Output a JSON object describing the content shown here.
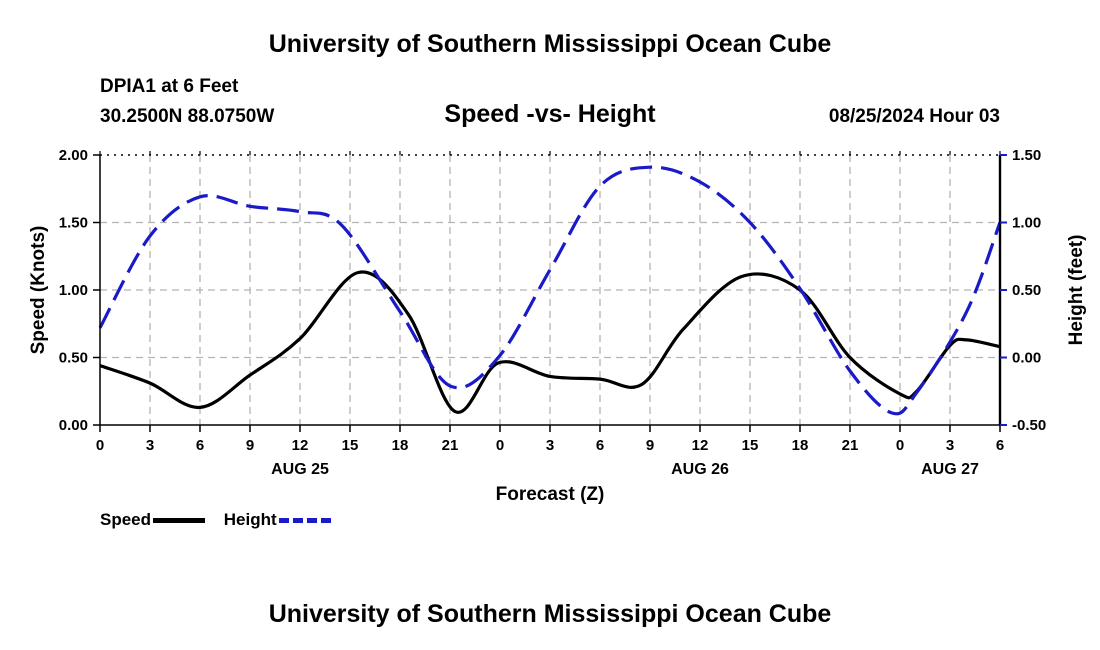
{
  "header": {
    "title": "University of Southern Mississippi Ocean Cube",
    "station": "DPIA1 at 6 Feet",
    "coords": "30.2500N  88.0750W",
    "subtitle": "Speed -vs- Height",
    "datetime": "08/25/2024 Hour 03"
  },
  "footer": {
    "title": "University of Southern Mississippi Ocean Cube"
  },
  "legend": {
    "speed_label": "Speed",
    "height_label": "Height"
  },
  "colors": {
    "speed": "#000000",
    "height": "#1a1ac8",
    "grid": "#b4b4b4"
  },
  "chart_data": {
    "type": "line",
    "title": "Speed -vs- Height",
    "xlabel": "Forecast (Z)",
    "ylabel": "Speed (Knots)",
    "y2label": "Height (feet)",
    "xlim": [
      0,
      54
    ],
    "ylim": [
      0,
      2
    ],
    "y2lim": [
      -0.5,
      1.5
    ],
    "x_ticks": [
      0,
      3,
      6,
      9,
      12,
      15,
      18,
      21,
      24,
      27,
      30,
      33,
      36,
      39,
      42,
      45,
      48,
      51,
      54
    ],
    "x_tick_labels": [
      "0",
      "3",
      "6",
      "9",
      "12",
      "15",
      "18",
      "21",
      "0",
      "3",
      "6",
      "9",
      "12",
      "15",
      "18",
      "21",
      "0",
      "3",
      "6"
    ],
    "date_labels": [
      {
        "x": 12,
        "label": "AUG 25"
      },
      {
        "x": 36,
        "label": "AUG 26"
      },
      {
        "x": 51,
        "label": "AUG 27"
      }
    ],
    "y_ticks": [
      0,
      0.5,
      1,
      1.5,
      2
    ],
    "y_tick_labels": [
      "0.00",
      "0.50",
      "1.00",
      "1.50",
      "2.00"
    ],
    "y2_ticks": [
      -0.5,
      0,
      0.5,
      1,
      1.5
    ],
    "y2_tick_labels": [
      "-0.50",
      "0.00",
      "0.50",
      "1.00",
      "1.50"
    ],
    "grid": true,
    "legend_position": "bottom-left",
    "series": [
      {
        "name": "Speed",
        "axis": "left",
        "style": "solid",
        "x": [
          0,
          3,
          6,
          9,
          12,
          15.5,
          18.5,
          21.3,
          23.9,
          27,
          30,
          32.5,
          35,
          38.5,
          42,
          45,
          48,
          49,
          51,
          52,
          54
        ],
        "values": [
          0.44,
          0.31,
          0.13,
          0.37,
          0.64,
          1.13,
          0.82,
          0.1,
          0.46,
          0.36,
          0.34,
          0.3,
          0.71,
          1.1,
          1.0,
          0.5,
          0.23,
          0.25,
          0.59,
          0.63,
          0.58
        ]
      },
      {
        "name": "Height",
        "axis": "right",
        "style": "dashed",
        "x": [
          0,
          3,
          6,
          9,
          12,
          14.5,
          18,
          21,
          23.9,
          27,
          30,
          33,
          36,
          39,
          42,
          45,
          47.5,
          49,
          52,
          54
        ],
        "values": [
          0.22,
          0.9,
          1.19,
          1.12,
          1.08,
          0.98,
          0.34,
          -0.21,
          0.0,
          0.65,
          1.27,
          1.41,
          1.3,
          1.0,
          0.51,
          -0.1,
          -0.41,
          -0.26,
          0.34,
          1.0
        ]
      }
    ]
  }
}
